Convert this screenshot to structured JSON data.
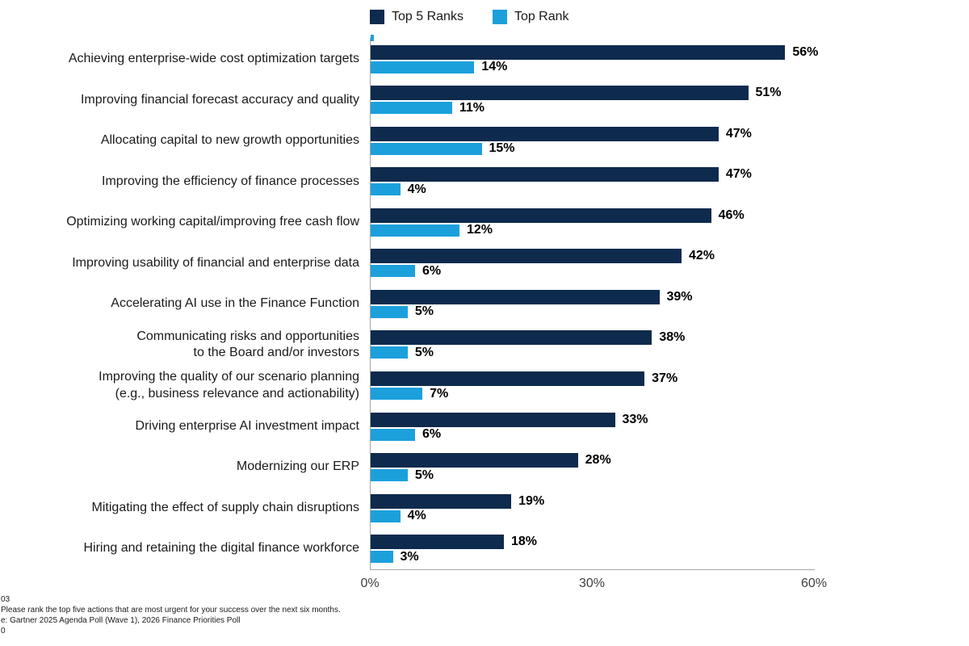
{
  "chart_data": {
    "type": "bar",
    "orientation": "horizontal",
    "title": "",
    "xlabel": "",
    "ylabel": "",
    "categories": [
      "Achieving enterprise-wide cost optimization targets",
      "Improving financial forecast accuracy and quality",
      "Allocating capital to new growth opportunities",
      "Improving the efficiency of finance processes",
      "Optimizing working capital/improving free cash flow",
      "Improving usability of financial and enterprise data",
      "Accelerating AI use in the Finance Function",
      "Communicating risks and opportunities\nto the Board and/or investors",
      "Improving the quality of our scenario planning\n(e.g., business relevance and actionability)",
      "Driving enterprise AI investment impact",
      "Modernizing our ERP",
      "Mitigating the effect of supply chain disruptions",
      "Hiring and retaining the digital finance workforce"
    ],
    "series": [
      {
        "name": "Top 5 Ranks",
        "color": "#0e2a4d",
        "values": [
          56,
          51,
          47,
          47,
          46,
          42,
          39,
          38,
          37,
          33,
          28,
          19,
          18
        ]
      },
      {
        "name": "Top Rank",
        "color": "#1ca0dc",
        "values": [
          14,
          11,
          15,
          4,
          12,
          6,
          5,
          5,
          7,
          6,
          5,
          4,
          3
        ]
      }
    ],
    "value_suffix": "%",
    "xlim": [
      0,
      60
    ],
    "x_ticks": [
      {
        "label": "0%",
        "value": 0
      },
      {
        "label": "30%",
        "value": 30
      },
      {
        "label": "60%",
        "value": 60
      }
    ],
    "legend_position": "top",
    "grid": false
  },
  "footnote": {
    "lines": [
      "03",
      "Please rank the top five actions that are most urgent for your success over the next six months.",
      "e: Gartner 2025 Agenda Poll (Wave 1), 2026 Finance Priorities Poll",
      "0"
    ]
  },
  "colors": {
    "series_primary": "#0e2a4d",
    "series_secondary": "#1ca0dc",
    "axis_line": "#a6a6a6",
    "tick_text": "#404040",
    "value_text": "#000000"
  }
}
